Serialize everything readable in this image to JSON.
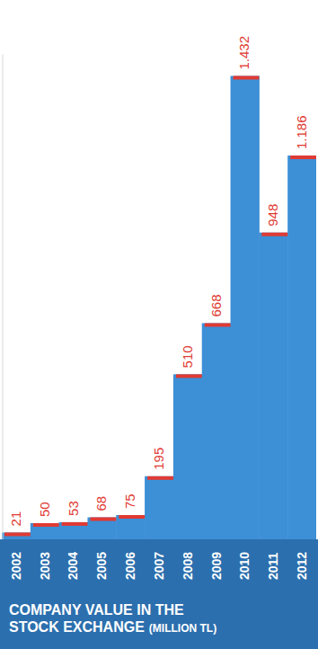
{
  "chart_data": {
    "type": "bar",
    "title": "COMPANY VALUE IN THE STOCK EXCHANGE",
    "subtitle": "(MILLION TL)",
    "categories": [
      "2002",
      "2003",
      "2004",
      "2005",
      "2006",
      "2007",
      "2008",
      "2009",
      "2010",
      "2011",
      "2012"
    ],
    "values": [
      21,
      50,
      53,
      68,
      75,
      195,
      510,
      668,
      1432,
      948,
      1186
    ],
    "value_labels": [
      "21",
      "50",
      "53",
      "68",
      "75",
      "195",
      "510",
      "668",
      "1.432",
      "948",
      "1.186"
    ],
    "color": "#3d8fd6",
    "ylim": [
      0,
      1500
    ],
    "yticks": [],
    "grid": false,
    "data_labels": true,
    "tick_labels": "x"
  }
}
